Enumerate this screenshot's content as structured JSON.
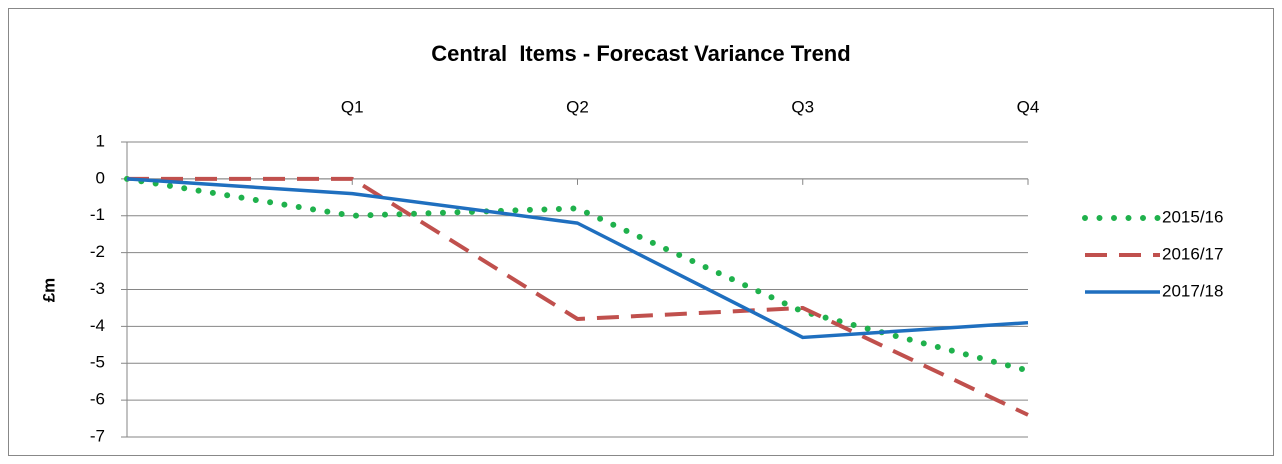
{
  "chart_data": {
    "type": "line",
    "title": "Central  Items - Forecast Variance Trend",
    "y_label": "£m",
    "categories": [
      null,
      "Q1",
      "Q2",
      "Q3",
      "Q4"
    ],
    "series": [
      {
        "name": "2015/16",
        "color": "#1fb14c",
        "style": "dotted",
        "values": [
          0,
          -1,
          -0.8,
          -3.6,
          -5.2
        ]
      },
      {
        "name": "2016/17",
        "color": "#c0504d",
        "style": "dashed",
        "values": [
          0,
          0,
          -3.8,
          -3.5,
          -6.4
        ]
      },
      {
        "name": "2017/18",
        "color": "#1f6fbf",
        "style": "solid",
        "values": [
          0,
          -0.4,
          -1.2,
          -4.3,
          -3.9
        ]
      }
    ],
    "ylim": [
      -7,
      1
    ],
    "yticks": [
      -7,
      -6,
      -5,
      -4,
      -3,
      -2,
      -1,
      0,
      1
    ],
    "grid": true,
    "legend": "right"
  }
}
